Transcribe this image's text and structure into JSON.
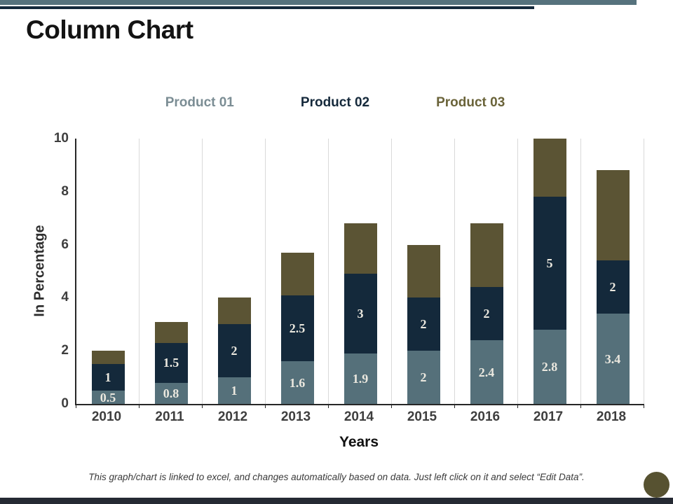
{
  "slide": {
    "title": "Column Chart",
    "footer_note": "This graph/chart is linked to excel, and changes automatically based on data. Just left click on it and select “Edit Data”.",
    "accents": {
      "top_bar_primary": "#56727d",
      "top_bar_secondary": "#14293b",
      "bottom_bar": "#252a33",
      "corner_circle": "#575231"
    }
  },
  "legend": {
    "items": [
      {
        "label": "Product 01",
        "color": "#7b8d94"
      },
      {
        "label": "Product 02",
        "color": "#15293b"
      },
      {
        "label": "Product 03",
        "color": "#6a6339"
      }
    ]
  },
  "chart_data": {
    "type": "bar",
    "stacked": true,
    "title": "",
    "xlabel": "Years",
    "ylabel": "In Percentage",
    "categories": [
      "2010",
      "2011",
      "2012",
      "2013",
      "2014",
      "2015",
      "2016",
      "2017",
      "2018"
    ],
    "series": [
      {
        "name": "Product 01",
        "color": "#55707a",
        "values": [
          0.5,
          0.8,
          1,
          1.6,
          1.9,
          2,
          2.4,
          2.8,
          3.4
        ],
        "show_labels": true
      },
      {
        "name": "Product 02",
        "color": "#14293b",
        "values": [
          1,
          1.5,
          2,
          2.5,
          3,
          2,
          2,
          5,
          2
        ],
        "show_labels": true
      },
      {
        "name": "Product 03",
        "color": "#5b5434",
        "values": [
          0.5,
          0.8,
          1,
          1.6,
          1.9,
          2,
          2.4,
          2.2,
          3.4
        ],
        "show_labels": false
      }
    ],
    "ylim": [
      0,
      10
    ],
    "yticks": [
      0,
      2,
      4,
      6,
      8,
      10
    ],
    "gridlines": "vertical-only",
    "legend_position": "top",
    "data_label_color": "#ebe8df"
  }
}
